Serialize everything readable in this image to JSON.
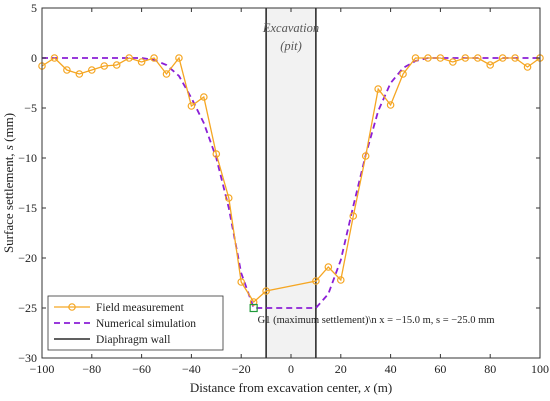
{
  "chart_data": {
    "type": "line",
    "xlabel_prefix": "Distance from excavation center, ",
    "xlabel_var": "x",
    "xlabel_suffix": " (m)",
    "ylabel_prefix": "Surface settlement, ",
    "ylabel_var": "s",
    "ylabel_suffix": " (mm)",
    "xlim": [
      -100,
      100
    ],
    "ylim": [
      -30,
      5
    ],
    "xticks": [
      -100,
      -80,
      -60,
      -40,
      -20,
      0,
      20,
      40,
      60,
      80,
      100
    ],
    "yticks": [
      5,
      0,
      -5,
      -10,
      -15,
      -20,
      -25,
      -30
    ],
    "grid": false,
    "legend_position": "bottom-left",
    "excavation_region": {
      "x_range": [
        -10,
        10
      ],
      "label_line1": "Excavation",
      "label_line2": "(pit)"
    },
    "series": [
      {
        "name": "Field measurement",
        "color": "#f5a623",
        "marker": "circle",
        "x": [
          -100,
          -95,
          -90,
          -85,
          -80,
          -75,
          -70,
          -65,
          -60,
          -55,
          -50,
          -45,
          -40,
          -35,
          -30,
          -25,
          -20,
          -15,
          -10,
          10,
          15,
          20,
          25,
          30,
          35,
          40,
          45,
          50,
          55,
          60,
          65,
          70,
          75,
          80,
          85,
          90,
          95,
          100
        ],
        "y": [
          -0.8,
          0,
          -1.2,
          -1.6,
          -1.2,
          -0.8,
          -0.7,
          0,
          -0.4,
          0,
          -1.6,
          0,
          -4.8,
          -3.9,
          -9.6,
          -14.0,
          -22.4,
          -24.4,
          -23.3,
          -22.3,
          -20.9,
          -22.2,
          -15.8,
          -9.8,
          -3.1,
          -4.7,
          -1.6,
          0,
          0,
          0,
          -0.4,
          0,
          0,
          -0.7,
          0,
          0,
          -0.9,
          0
        ]
      },
      {
        "name": "Numerical simulation",
        "color": "#8b1fd6",
        "style": "dashed",
        "x": [
          -100,
          -60,
          -55,
          -50,
          -45,
          -40,
          -35,
          -30,
          -25,
          -20,
          -15,
          10,
          15,
          20,
          25,
          30,
          35,
          40,
          45,
          50,
          55,
          100
        ],
        "y": [
          0,
          0,
          -0.2,
          -0.7,
          -1.8,
          -4.0,
          -6.5,
          -10.0,
          -15.0,
          -21.5,
          -25.0,
          -25.0,
          -23.6,
          -20.2,
          -14.8,
          -9.7,
          -5.3,
          -2.5,
          -1.0,
          -0.3,
          0,
          0
        ]
      },
      {
        "name": "Diaphragm wall",
        "color": "#000000",
        "wall_x": [
          -10,
          10
        ]
      }
    ],
    "annotation": {
      "text": "G1 (maximum settlement)\\n x = −15.0 m, s = −25.0 mm",
      "point": {
        "x": -15,
        "y": -25
      },
      "marker_color": "#1f9a3a"
    }
  }
}
